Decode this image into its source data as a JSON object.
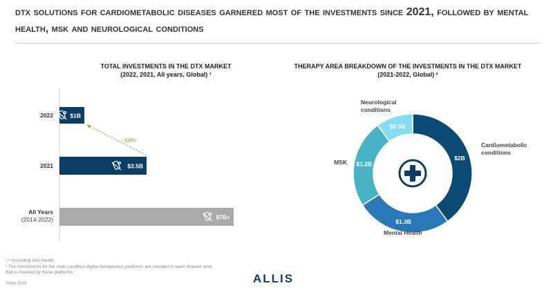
{
  "header": {
    "title": "DTx solutions for cardiometabolic diseases garnered most of the investments since 2021, followed by mental health, MSK and neurological conditions"
  },
  "left_chart": {
    "title_line1": "TOTAL INVESTMENTS IN THE DTX MARKET",
    "title_line2": "(2022, 2021, All years, Global) ¹"
  },
  "right_chart": {
    "title_line1": "THERAPY AREA BREAKDOWN OF THE INVESTMENTS IN THE DTX MARKET",
    "title_line2": "(2021-2022, Global) ²"
  },
  "footnotes": {
    "line1": "¹,² According Allis.Health",
    "line2": "² The investments for the multi condition digital therapeutics platforms are included in each disease area",
    "line3": "that is covered by these platforms"
  },
  "copyright": "©Allis 2023",
  "logo": "ALLIS",
  "colors": {
    "navy": "#0b3d66",
    "grey_bar": "#aaaaaa",
    "green_change": "#7cb342",
    "cardiometabolic": "#0b4a73",
    "mental_health": "#2a78b8",
    "msk": "#49b3c6",
    "neurological": "#86dcf2"
  },
  "chart_data": [
    {
      "type": "bar",
      "orientation": "horizontal",
      "categories": [
        "2022",
        "2021",
        "All Years"
      ],
      "category_sublabels": [
        "",
        "",
        "(2014-2022)"
      ],
      "values": [
        1,
        3.5,
        7
      ],
      "value_labels": [
        "$1B",
        "$3.5B",
        "$7B+"
      ],
      "unit": "B USD",
      "annotation": {
        "from": "2021",
        "to": "2022",
        "label": "- 69%"
      },
      "icon": "dtx-app-icon"
    },
    {
      "type": "pie",
      "donut": true,
      "slices": [
        {
          "label": "Cardiometabolic conditions",
          "value": 2,
          "value_label": "$2B"
        },
        {
          "label": "Mental Health",
          "value": 1.3,
          "value_label": "$1.3B"
        },
        {
          "label": "MSK",
          "value": 1.2,
          "value_label": "$1.2B"
        },
        {
          "label": "Neurological conditions",
          "value": 0.5,
          "value_label": "$0.5B"
        }
      ],
      "center_icon": "medical-cross-icon"
    }
  ]
}
